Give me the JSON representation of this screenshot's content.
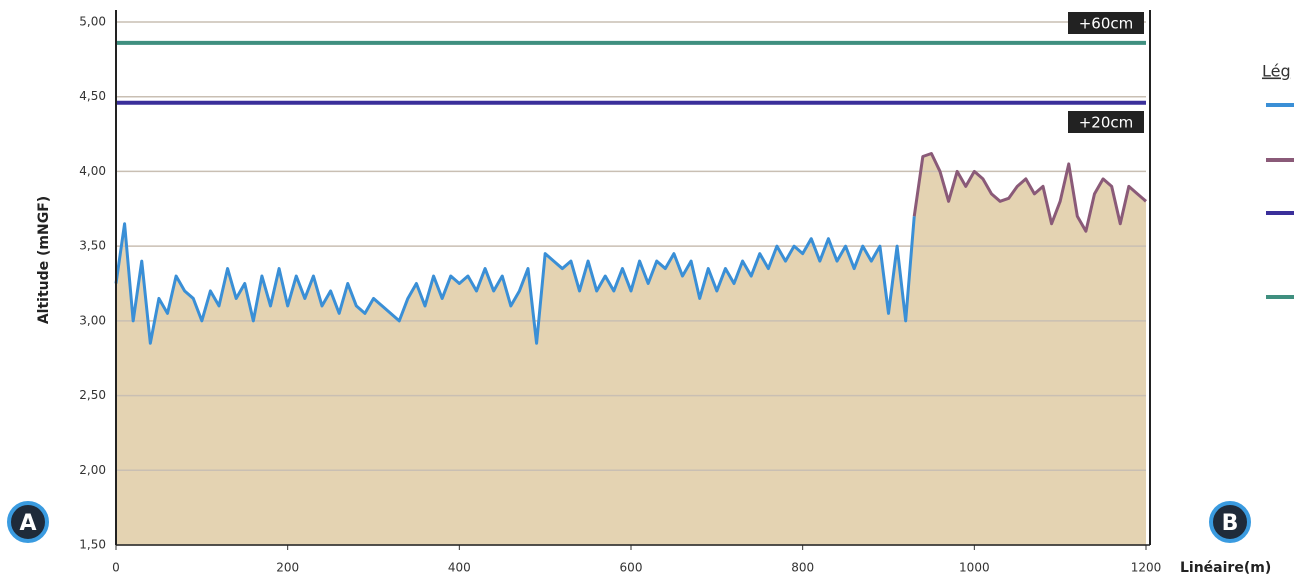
{
  "chart_data": {
    "type": "line",
    "y_label": "Altitude (mNGF)",
    "x_label": "Linéaire(m)",
    "legend_title": "Lég",
    "markers": [
      "A",
      "B"
    ],
    "fill_color": "#e4d3b2",
    "xlim": [
      0,
      1200
    ],
    "xticks": [
      0,
      200,
      400,
      600,
      800,
      1000,
      1200
    ],
    "ylim": [
      1.5,
      5.0
    ],
    "yticks": [
      {
        "value": 1.5,
        "label": "1,50"
      },
      {
        "value": 2.0,
        "label": "2,00"
      },
      {
        "value": 2.5,
        "label": "2,50"
      },
      {
        "value": 3.0,
        "label": "3,00"
      },
      {
        "value": 3.5,
        "label": "3,50"
      },
      {
        "value": 4.0,
        "label": "4,00"
      },
      {
        "value": 4.5,
        "label": "4,50"
      },
      {
        "value": 5.0,
        "label": "5,00"
      }
    ],
    "grid": true,
    "series": [
      {
        "color": "#3a8fd6",
        "x": [
          0,
          10,
          20,
          30,
          40,
          50,
          60,
          70,
          80,
          90,
          100,
          110,
          120,
          130,
          140,
          150,
          160,
          170,
          180,
          190,
          200,
          210,
          220,
          230,
          240,
          250,
          260,
          270,
          280,
          290,
          300,
          310,
          320,
          330,
          340,
          350,
          360,
          370,
          380,
          390,
          400,
          410,
          420,
          430,
          440,
          450,
          460,
          470,
          480,
          490,
          500,
          510,
          520,
          530,
          540,
          550,
          560,
          570,
          580,
          590,
          600,
          610,
          620,
          630,
          640,
          650,
          660,
          670,
          680,
          690,
          700,
          710,
          720,
          730,
          740,
          750,
          760,
          770,
          780,
          790,
          800,
          810,
          820,
          830,
          840,
          850,
          860,
          870,
          880,
          890,
          900,
          910,
          920,
          930
        ],
        "values": [
          3.25,
          3.65,
          3.0,
          3.4,
          2.85,
          3.15,
          3.05,
          3.3,
          3.2,
          3.15,
          3.0,
          3.2,
          3.1,
          3.35,
          3.15,
          3.25,
          3.0,
          3.3,
          3.1,
          3.35,
          3.1,
          3.3,
          3.15,
          3.3,
          3.1,
          3.2,
          3.05,
          3.25,
          3.1,
          3.05,
          3.15,
          3.1,
          3.05,
          3.0,
          3.15,
          3.25,
          3.1,
          3.3,
          3.15,
          3.3,
          3.25,
          3.3,
          3.2,
          3.35,
          3.2,
          3.3,
          3.1,
          3.2,
          3.35,
          2.85,
          3.45,
          3.4,
          3.35,
          3.4,
          3.2,
          3.4,
          3.2,
          3.3,
          3.2,
          3.35,
          3.2,
          3.4,
          3.25,
          3.4,
          3.35,
          3.45,
          3.3,
          3.4,
          3.15,
          3.35,
          3.2,
          3.35,
          3.25,
          3.4,
          3.3,
          3.45,
          3.35,
          3.5,
          3.4,
          3.5,
          3.45,
          3.55,
          3.4,
          3.55,
          3.4,
          3.5,
          3.35,
          3.5,
          3.4,
          3.5,
          3.05,
          3.5,
          3.0,
          3.7
        ]
      },
      {
        "color": "#8a5a78",
        "x": [
          930,
          940,
          950,
          960,
          970,
          980,
          990,
          1000,
          1010,
          1020,
          1030,
          1040,
          1050,
          1060,
          1070,
          1080,
          1090,
          1100,
          1110,
          1120,
          1130,
          1140,
          1150,
          1160,
          1170,
          1180,
          1190,
          1200
        ],
        "values": [
          3.7,
          4.1,
          4.12,
          4.0,
          3.8,
          4.0,
          3.9,
          4.0,
          3.95,
          3.85,
          3.8,
          3.82,
          3.9,
          3.95,
          3.85,
          3.9,
          3.65,
          3.8,
          4.05,
          3.7,
          3.6,
          3.85,
          3.95,
          3.9,
          3.65,
          3.9,
          3.85,
          3.8
        ]
      }
    ],
    "reference_lines": [
      {
        "value": 4.46,
        "color": "#3a2f9a",
        "label": "+20cm"
      },
      {
        "value": 4.86,
        "color": "#3f8f7f",
        "label": "+60cm"
      }
    ]
  }
}
